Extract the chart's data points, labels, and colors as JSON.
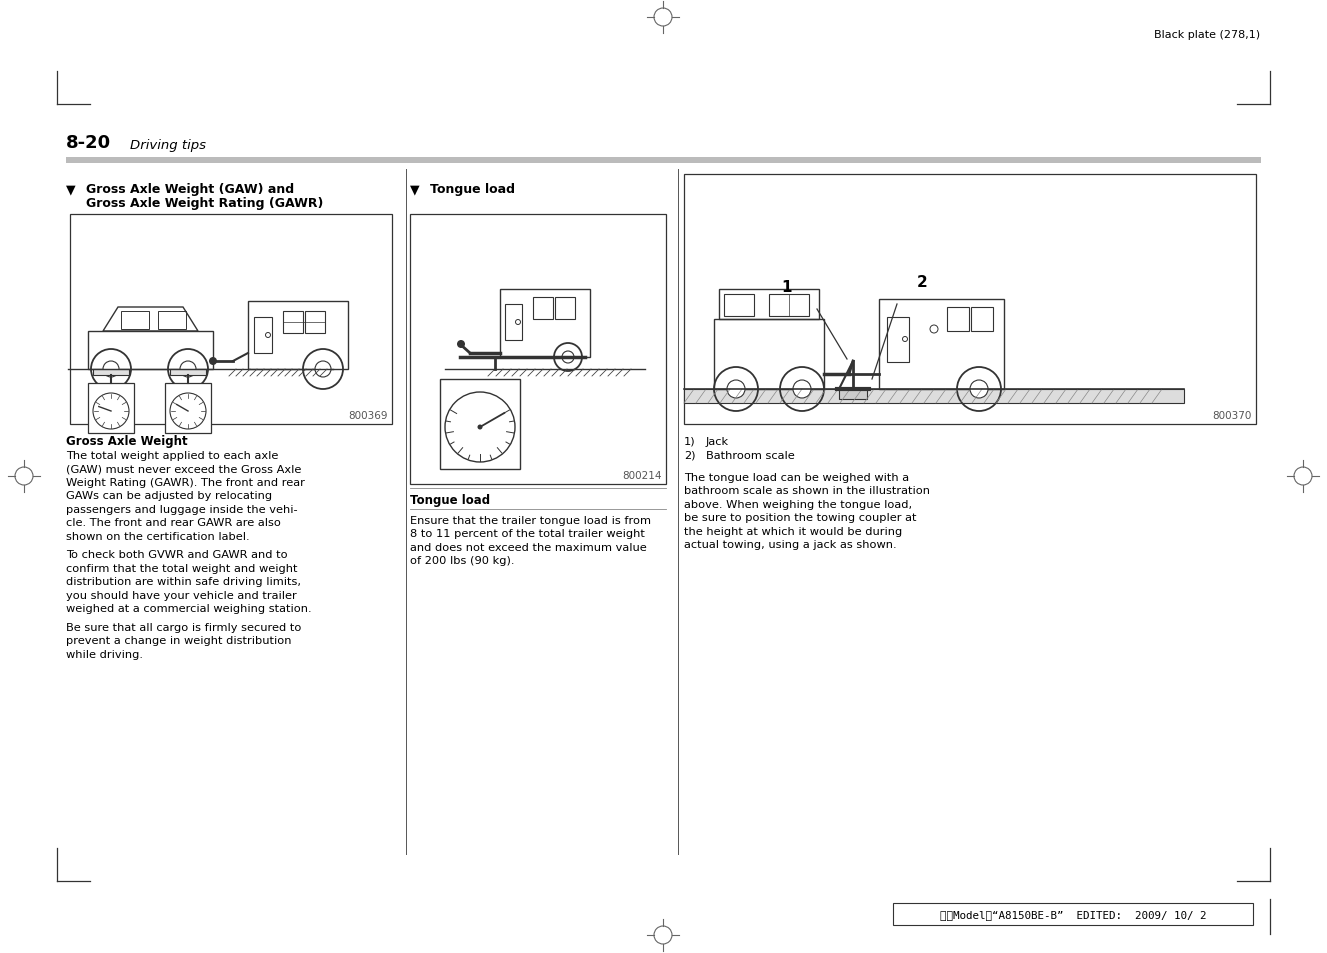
{
  "page_background": "#ffffff",
  "text_color": "#000000",
  "header_text": "Black plate (278,1)",
  "section_number": "8-20",
  "section_italic": "Driving tips",
  "col1_heading_line1": "Gross Axle Weight (GAW) and",
  "col1_heading_line2": "Gross Axle Weight Rating (GAWR)",
  "col2_heading": "Tongue load",
  "col1_img_label": "800369",
  "col2_img_label": "800214",
  "col3_img_label": "800370",
  "col1_bold_text": "Gross Axle Weight",
  "col1_body_p1": [
    "The total weight applied to each axle",
    "(GAW) must never exceed the Gross Axle",
    "Weight Rating (GAWR). The front and rear",
    "GAWs can be adjusted by relocating",
    "passengers and luggage inside the vehi-",
    "cle. The front and rear GAWR are also",
    "shown on the certification label."
  ],
  "col1_body_p2": [
    "To check both GVWR and GAWR and to",
    "confirm that the total weight and weight",
    "distribution are within safe driving limits,",
    "you should have your vehicle and trailer",
    "weighed at a commercial weighing station."
  ],
  "col1_body_p3": [
    "Be sure that all cargo is firmly secured to",
    "prevent a change in weight distribution",
    "while driving."
  ],
  "col2_caption": "Tongue load",
  "col2_body": [
    "Ensure that the trailer tongue load is from",
    "8 to 11 percent of the total trailer weight",
    "and does not exceed the maximum value",
    "of 200 lbs (90 kg)."
  ],
  "col3_item1": "Jack",
  "col3_item2": "Bathroom scale",
  "col3_body": [
    "The tongue load can be weighed with a",
    "bathroom scale as shown in the illustration",
    "above. When weighing the tongue load,",
    "be sure to position the towing coupler at",
    "the height at which it would be during",
    "actual towing, using a jack as shown."
  ],
  "footer_text": "北米Modelａ“A8150BE-B”  EDITED:  2009/ 10/ 2"
}
